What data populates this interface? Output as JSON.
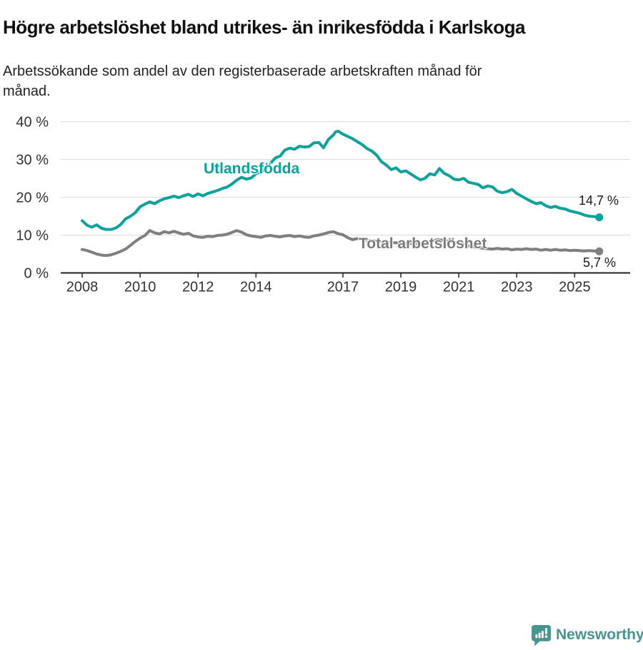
{
  "header": {
    "title": "Högre arbetslöshet bland utrikes- än inrikesfödda i Karlskoga",
    "subtitle": "Arbetssökande som andel av den registerbaserade arbetskraften månad för månad."
  },
  "footer": {
    "brand": "Newsworthy"
  },
  "colors": {
    "teal_line": "#0aa29a",
    "gray_line": "#7f7f7f",
    "gridline": "#e0e0e0",
    "axis": "#222222",
    "brand_teal": "#48948f"
  },
  "chart_data": {
    "type": "line",
    "title": "Högre arbetslöshet bland utrikes- än inrikesfödda i Karlskoga",
    "subtitle": "Arbetssökande som andel av den registerbaserade arbetskraften månad för månad.",
    "grid": true,
    "legend_position": "inline-labels",
    "x_axis": {
      "ticks": [
        2008,
        2010,
        2012,
        2014,
        2017,
        2019,
        2021,
        2023,
        2025
      ],
      "range": [
        2007.6,
        2026.2
      ]
    },
    "y_axis": {
      "ticks": [
        0,
        10,
        20,
        30,
        40
      ],
      "unit": "%",
      "range": [
        0,
        42
      ],
      "tick_suffix": " %"
    },
    "series": [
      {
        "name": "Utlandsfödda",
        "color": "#0aa29a",
        "end_label": "14,7 %",
        "end_value": 14.7,
        "points": [
          [
            2008.0,
            13.8
          ],
          [
            2008.17,
            12.6
          ],
          [
            2008.33,
            12.1
          ],
          [
            2008.5,
            12.7
          ],
          [
            2008.67,
            11.8
          ],
          [
            2008.83,
            11.5
          ],
          [
            2009.0,
            11.5
          ],
          [
            2009.17,
            11.9
          ],
          [
            2009.33,
            12.8
          ],
          [
            2009.5,
            14.3
          ],
          [
            2009.67,
            15.0
          ],
          [
            2009.83,
            15.9
          ],
          [
            2010.0,
            17.5
          ],
          [
            2010.17,
            18.2
          ],
          [
            2010.33,
            18.8
          ],
          [
            2010.5,
            18.3
          ],
          [
            2010.67,
            19.1
          ],
          [
            2010.83,
            19.6
          ],
          [
            2011.0,
            19.9
          ],
          [
            2011.17,
            20.3
          ],
          [
            2011.33,
            19.9
          ],
          [
            2011.5,
            20.4
          ],
          [
            2011.67,
            20.8
          ],
          [
            2011.83,
            20.2
          ],
          [
            2012.0,
            20.9
          ],
          [
            2012.17,
            20.4
          ],
          [
            2012.33,
            21.0
          ],
          [
            2012.5,
            21.4
          ],
          [
            2012.67,
            21.8
          ],
          [
            2012.83,
            22.3
          ],
          [
            2013.0,
            22.7
          ],
          [
            2013.17,
            23.5
          ],
          [
            2013.33,
            24.5
          ],
          [
            2013.5,
            25.3
          ],
          [
            2013.67,
            24.8
          ],
          [
            2013.83,
            25.1
          ],
          [
            2014.0,
            26.2
          ],
          [
            2014.17,
            26.8
          ],
          [
            2014.33,
            27.6
          ],
          [
            2014.5,
            29.0
          ],
          [
            2014.67,
            30.4
          ],
          [
            2014.83,
            30.9
          ],
          [
            2015.0,
            32.5
          ],
          [
            2015.17,
            33.0
          ],
          [
            2015.33,
            32.7
          ],
          [
            2015.5,
            33.5
          ],
          [
            2015.67,
            33.3
          ],
          [
            2015.83,
            33.4
          ],
          [
            2016.0,
            34.4
          ],
          [
            2016.17,
            34.5
          ],
          [
            2016.33,
            33.1
          ],
          [
            2016.5,
            35.3
          ],
          [
            2016.67,
            36.5
          ],
          [
            2016.75,
            37.3
          ],
          [
            2016.83,
            37.5
          ],
          [
            2017.0,
            36.7
          ],
          [
            2017.17,
            36.1
          ],
          [
            2017.33,
            35.5
          ],
          [
            2017.5,
            34.7
          ],
          [
            2017.67,
            33.9
          ],
          [
            2017.83,
            32.9
          ],
          [
            2018.0,
            32.2
          ],
          [
            2018.17,
            31.1
          ],
          [
            2018.33,
            29.4
          ],
          [
            2018.5,
            28.5
          ],
          [
            2018.67,
            27.3
          ],
          [
            2018.83,
            27.8
          ],
          [
            2019.0,
            26.7
          ],
          [
            2019.17,
            27.0
          ],
          [
            2019.33,
            26.2
          ],
          [
            2019.5,
            25.4
          ],
          [
            2019.67,
            24.6
          ],
          [
            2019.83,
            25.0
          ],
          [
            2020.0,
            26.2
          ],
          [
            2020.17,
            25.9
          ],
          [
            2020.33,
            27.6
          ],
          [
            2020.5,
            26.3
          ],
          [
            2020.67,
            25.7
          ],
          [
            2020.83,
            24.8
          ],
          [
            2021.0,
            24.6
          ],
          [
            2021.17,
            25.0
          ],
          [
            2021.33,
            24.0
          ],
          [
            2021.5,
            23.7
          ],
          [
            2021.67,
            23.4
          ],
          [
            2021.83,
            22.5
          ],
          [
            2022.0,
            23.0
          ],
          [
            2022.17,
            22.7
          ],
          [
            2022.33,
            21.6
          ],
          [
            2022.5,
            21.2
          ],
          [
            2022.67,
            21.5
          ],
          [
            2022.83,
            22.1
          ],
          [
            2023.0,
            21.0
          ],
          [
            2023.17,
            20.3
          ],
          [
            2023.33,
            19.6
          ],
          [
            2023.5,
            18.9
          ],
          [
            2023.67,
            18.3
          ],
          [
            2023.83,
            18.6
          ],
          [
            2024.0,
            17.8
          ],
          [
            2024.17,
            17.3
          ],
          [
            2024.33,
            17.6
          ],
          [
            2024.5,
            17.1
          ],
          [
            2024.67,
            16.9
          ],
          [
            2024.83,
            16.4
          ],
          [
            2025.0,
            16.1
          ],
          [
            2025.17,
            15.8
          ],
          [
            2025.33,
            15.3
          ],
          [
            2025.5,
            15.0
          ],
          [
            2025.67,
            14.9
          ],
          [
            2025.85,
            14.7
          ]
        ]
      },
      {
        "name": "Total arbetslöshet",
        "color": "#7f7f7f",
        "end_label": "5,7 %",
        "end_value": 5.7,
        "points": [
          [
            2008.0,
            6.2
          ],
          [
            2008.17,
            5.9
          ],
          [
            2008.33,
            5.5
          ],
          [
            2008.5,
            5.0
          ],
          [
            2008.67,
            4.7
          ],
          [
            2008.83,
            4.6
          ],
          [
            2009.0,
            4.8
          ],
          [
            2009.17,
            5.2
          ],
          [
            2009.33,
            5.7
          ],
          [
            2009.5,
            6.3
          ],
          [
            2009.67,
            7.3
          ],
          [
            2009.83,
            8.3
          ],
          [
            2010.0,
            9.2
          ],
          [
            2010.17,
            9.9
          ],
          [
            2010.33,
            11.2
          ],
          [
            2010.5,
            10.6
          ],
          [
            2010.67,
            10.3
          ],
          [
            2010.83,
            10.9
          ],
          [
            2011.0,
            10.6
          ],
          [
            2011.17,
            11.0
          ],
          [
            2011.33,
            10.6
          ],
          [
            2011.5,
            10.2
          ],
          [
            2011.67,
            10.5
          ],
          [
            2011.83,
            9.8
          ],
          [
            2012.0,
            9.5
          ],
          [
            2012.17,
            9.4
          ],
          [
            2012.33,
            9.7
          ],
          [
            2012.5,
            9.6
          ],
          [
            2012.67,
            9.9
          ],
          [
            2012.83,
            10.0
          ],
          [
            2013.0,
            10.2
          ],
          [
            2013.17,
            10.7
          ],
          [
            2013.33,
            11.2
          ],
          [
            2013.5,
            10.8
          ],
          [
            2013.67,
            10.1
          ],
          [
            2013.83,
            9.8
          ],
          [
            2014.0,
            9.6
          ],
          [
            2014.17,
            9.4
          ],
          [
            2014.33,
            9.8
          ],
          [
            2014.5,
            9.9
          ],
          [
            2014.67,
            9.7
          ],
          [
            2014.83,
            9.5
          ],
          [
            2015.0,
            9.8
          ],
          [
            2015.17,
            9.9
          ],
          [
            2015.33,
            9.6
          ],
          [
            2015.5,
            9.8
          ],
          [
            2015.67,
            9.5
          ],
          [
            2015.83,
            9.4
          ],
          [
            2016.0,
            9.8
          ],
          [
            2016.17,
            10.0
          ],
          [
            2016.33,
            10.3
          ],
          [
            2016.5,
            10.7
          ],
          [
            2016.67,
            10.9
          ],
          [
            2016.83,
            10.4
          ],
          [
            2017.0,
            10.1
          ],
          [
            2017.17,
            9.3
          ],
          [
            2017.33,
            8.8
          ],
          [
            2017.5,
            9.1
          ],
          [
            2017.67,
            8.9
          ],
          [
            2017.83,
            8.6
          ],
          [
            2018.0,
            8.5
          ],
          [
            2018.25,
            8.3
          ],
          [
            2018.5,
            8.1
          ],
          [
            2018.75,
            8.0
          ],
          [
            2019.0,
            7.9
          ],
          [
            2019.25,
            7.8
          ],
          [
            2019.5,
            7.7
          ],
          [
            2019.75,
            7.9
          ],
          [
            2020.0,
            8.1
          ],
          [
            2020.25,
            8.8
          ],
          [
            2020.5,
            8.6
          ],
          [
            2020.75,
            8.2
          ],
          [
            2021.0,
            7.9
          ],
          [
            2021.25,
            7.3
          ],
          [
            2021.5,
            6.9
          ],
          [
            2021.75,
            6.6
          ],
          [
            2022.0,
            6.4
          ],
          [
            2022.17,
            6.3
          ],
          [
            2022.33,
            6.5
          ],
          [
            2022.5,
            6.3
          ],
          [
            2022.67,
            6.4
          ],
          [
            2022.83,
            6.1
          ],
          [
            2023.0,
            6.3
          ],
          [
            2023.17,
            6.2
          ],
          [
            2023.33,
            6.4
          ],
          [
            2023.5,
            6.2
          ],
          [
            2023.67,
            6.3
          ],
          [
            2023.83,
            6.0
          ],
          [
            2024.0,
            6.2
          ],
          [
            2024.17,
            6.0
          ],
          [
            2024.33,
            6.2
          ],
          [
            2024.5,
            6.0
          ],
          [
            2024.67,
            6.1
          ],
          [
            2024.83,
            5.9
          ],
          [
            2025.0,
            6.0
          ],
          [
            2025.17,
            5.9
          ],
          [
            2025.33,
            5.8
          ],
          [
            2025.5,
            5.9
          ],
          [
            2025.67,
            5.8
          ],
          [
            2025.85,
            5.7
          ]
        ]
      }
    ]
  }
}
